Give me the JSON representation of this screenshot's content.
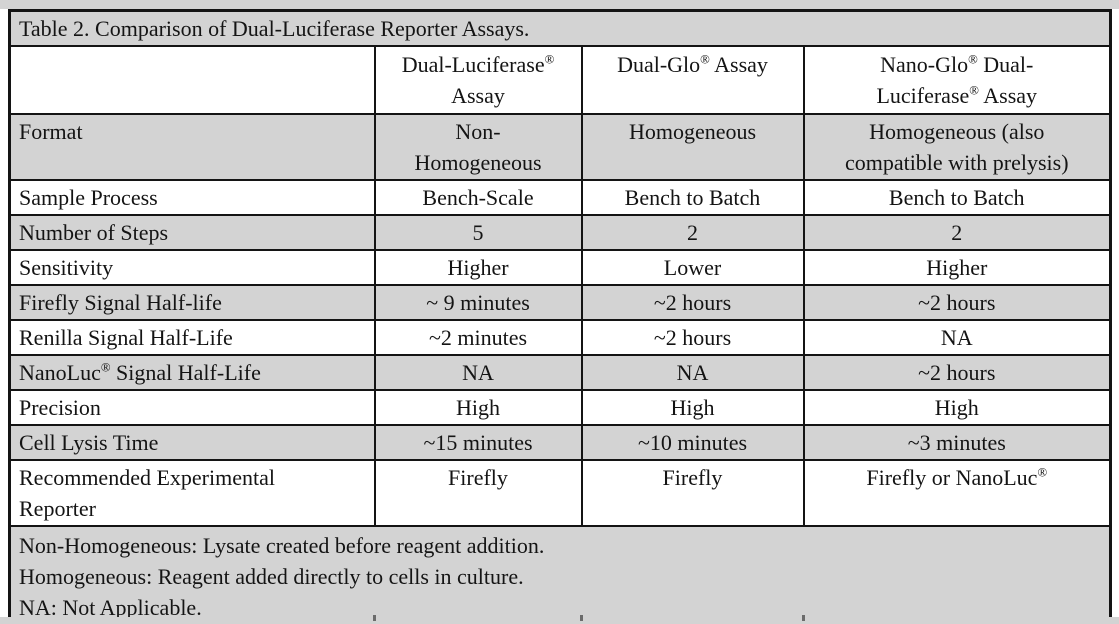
{
  "title": "Table 2. Comparison of Dual-Luciferase Reporter Assays.",
  "colors": {
    "row_shade": "#d3d3d3",
    "border": "#141414",
    "background": "#ffffff"
  },
  "table": {
    "columns": [
      "",
      "Dual-Luciferase® Assay",
      "Dual-Glo® Assay",
      "Nano-Glo® Dual-Luciferase® Assay"
    ],
    "rows": [
      {
        "label": "Format",
        "values": [
          "Non-Homogeneous",
          "Homogeneous",
          "Homogeneous (also compatible with prelysis)"
        ]
      },
      {
        "label": "Sample Process",
        "values": [
          "Bench-Scale",
          "Bench to Batch",
          "Bench to Batch"
        ]
      },
      {
        "label": "Number of Steps",
        "values": [
          "5",
          "2",
          "2"
        ]
      },
      {
        "label": "Sensitivity",
        "values": [
          "Higher",
          "Lower",
          "Higher"
        ]
      },
      {
        "label": "Firefly Signal Half-life",
        "values": [
          "~ 9 minutes",
          "~2 hours",
          "~2 hours"
        ]
      },
      {
        "label": "Renilla Signal Half-Life",
        "values": [
          "~2 minutes",
          "~2 hours",
          "NA"
        ]
      },
      {
        "label": "NanoLuc® Signal Half-Life",
        "values": [
          "NA",
          "NA",
          "~2 hours"
        ]
      },
      {
        "label": "Precision",
        "values": [
          "High",
          "High",
          "High"
        ]
      },
      {
        "label": "Cell Lysis Time",
        "values": [
          "~15 minutes",
          "~10 minutes",
          "~3 minutes"
        ]
      },
      {
        "label": "Recommended Experimental Reporter",
        "values": [
          "Firefly",
          "Firefly",
          "Firefly or NanoLuc®"
        ]
      }
    ],
    "footnotes": [
      "Non-Homogeneous: Lysate created before reagent addition.",
      "Homogeneous: Reagent added directly to cells in culture.",
      "NA: Not Applicable."
    ]
  }
}
